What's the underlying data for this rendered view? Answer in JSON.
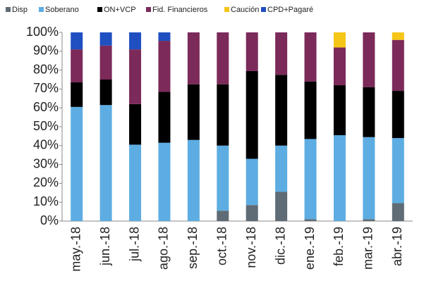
{
  "chart_data": {
    "type": "stacked_bar",
    "categories": [
      "may.-18",
      "jun.-18",
      "jul.-18",
      "ago.-18",
      "sep.-18",
      "oct.-18",
      "nov.-18",
      "dic.-18",
      "ene.-19",
      "feb.-19",
      "mar.-19",
      "abr.-19"
    ],
    "series": [
      {
        "name": "Disp",
        "color": "#5f6b75",
        "values": [
          0,
          0,
          0,
          0,
          0,
          5.5,
          8.5,
          15.5,
          1,
          0,
          1,
          9.5
        ]
      },
      {
        "name": "Soberano",
        "color": "#5dade2",
        "values": [
          60.5,
          61.5,
          40.5,
          41.5,
          43,
          34.5,
          24.5,
          24.5,
          42.5,
          45.5,
          43.5,
          34.5
        ]
      },
      {
        "name": "ON+VCP",
        "color": "#000000",
        "values": [
          13,
          13.5,
          21.5,
          27,
          29.5,
          32.5,
          46.5,
          37.5,
          30.5,
          26.5,
          26.5,
          25
        ]
      },
      {
        "name": "Fid. Financieros",
        "color": "#7b2a5a",
        "values": [
          17.5,
          18,
          29,
          27,
          27.5,
          27.5,
          20.5,
          22.5,
          26,
          20,
          29,
          27
        ]
      },
      {
        "name": "Caución",
        "color": "#f5c518",
        "values": [
          0,
          0,
          0,
          0,
          0,
          0,
          0,
          0,
          0,
          8,
          0,
          4
        ]
      },
      {
        "name": "CPD+Pagaré",
        "color": "#1f4fc1",
        "values": [
          9,
          7,
          9,
          4.5,
          0,
          0,
          0,
          0,
          0,
          0,
          0,
          0
        ]
      }
    ],
    "ylim": [
      0,
      100
    ],
    "yticks": [
      {
        "value": 0,
        "label": "0%"
      },
      {
        "value": 10,
        "label": "10%"
      },
      {
        "value": 20,
        "label": "20%"
      },
      {
        "value": 30,
        "label": "30%"
      },
      {
        "value": 40,
        "label": "40%"
      },
      {
        "value": 50,
        "label": "50%"
      },
      {
        "value": 60,
        "label": "60%"
      },
      {
        "value": 70,
        "label": "70%"
      },
      {
        "value": 80,
        "label": "80%"
      },
      {
        "value": 90,
        "label": "90%"
      },
      {
        "value": 100,
        "label": "100%"
      }
    ],
    "legend": "top"
  }
}
